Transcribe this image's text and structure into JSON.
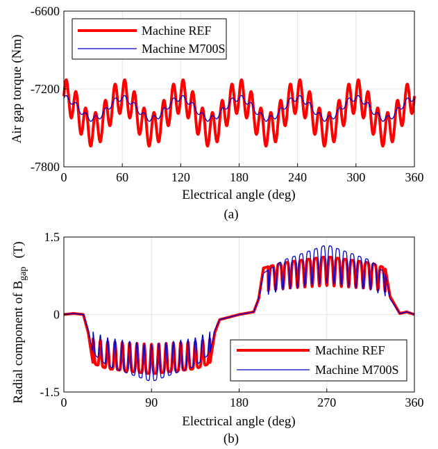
{
  "chart_data": [
    {
      "type": "line",
      "title": "",
      "panel_label": "(a)",
      "xlabel": "Electrical angle (deg)",
      "ylabel": "Air gap torque (Nm)",
      "xlim": [
        0,
        360
      ],
      "ylim": [
        -7800,
        -6600
      ],
      "xticks": [
        "0",
        "60",
        "120",
        "180",
        "240",
        "300",
        "360"
      ],
      "yticks": [
        "-7800",
        "-7200",
        "-6600"
      ],
      "grid": true,
      "legend_position": "top-left",
      "series": [
        {
          "name": "Machine REF",
          "color": "#ff0000",
          "mean": -7385,
          "components": [
            {
              "harmonic": 6,
              "amplitude": 130,
              "phase": 1.57
            },
            {
              "harmonic": 36,
              "amplitude": 130,
              "phase": 0.0
            }
          ]
        },
        {
          "name": "Machine M700S",
          "color": "#0000cc",
          "mean": -7350,
          "components": [
            {
              "harmonic": 6,
              "amplitude": 80,
              "phase": 1.57
            },
            {
              "harmonic": 36,
              "amplitude": 22,
              "phase": 0.0
            }
          ]
        }
      ]
    },
    {
      "type": "line",
      "title": "",
      "panel_label": "(b)",
      "xlabel": "Electrical angle (deg)",
      "ylabel": "Radial component of B",
      "ylabel_subscript": "gap",
      "ylabel_unit": "(T)",
      "xlim": [
        0,
        360
      ],
      "ylim": [
        -1.5,
        1.5
      ],
      "xticks": [
        "0",
        "90",
        "180",
        "270",
        "360"
      ],
      "yticks": [
        "-1.5",
        "0",
        "1.5"
      ],
      "grid": true,
      "legend_position": "bottom-right",
      "series": [
        {
          "name": "Machine REF",
          "color": "#ff0000",
          "envelope": [
            [
              0,
              0.0
            ],
            [
              10,
              0.02
            ],
            [
              20,
              0.0
            ],
            [
              25,
              -0.35
            ],
            [
              30,
              -0.95
            ],
            [
              45,
              -1.05
            ],
            [
              90,
              -1.15
            ],
            [
              135,
              -1.05
            ],
            [
              150,
              -0.95
            ],
            [
              155,
              -0.35
            ],
            [
              160,
              -0.1
            ],
            [
              170,
              -0.05
            ],
            [
              180,
              0.0
            ],
            [
              195,
              0.05
            ],
            [
              200,
              0.3
            ],
            [
              205,
              0.9
            ],
            [
              225,
              1.0
            ],
            [
              270,
              1.12
            ],
            [
              315,
              1.0
            ],
            [
              330,
              0.9
            ],
            [
              335,
              0.35
            ],
            [
              345,
              0.02
            ],
            [
              352,
              0.05
            ],
            [
              360,
              0.0
            ]
          ],
          "slot_ripple": {
            "count": 16,
            "depth": 0.5,
            "extent_deg": [
              30,
              150
            ]
          }
        },
        {
          "name": "Machine M700S",
          "color": "#0000cc",
          "envelope": [
            [
              0,
              0.0
            ],
            [
              10,
              0.02
            ],
            [
              20,
              0.0
            ],
            [
              25,
              -0.3
            ],
            [
              30,
              -0.75
            ],
            [
              45,
              -1.0
            ],
            [
              90,
              -1.3
            ],
            [
              135,
              -1.0
            ],
            [
              150,
              -0.75
            ],
            [
              155,
              -0.3
            ],
            [
              160,
              -0.1
            ],
            [
              170,
              -0.05
            ],
            [
              180,
              0.0
            ],
            [
              195,
              0.05
            ],
            [
              200,
              0.3
            ],
            [
              205,
              0.8
            ],
            [
              225,
              1.05
            ],
            [
              270,
              1.35
            ],
            [
              315,
              1.05
            ],
            [
              330,
              0.8
            ],
            [
              335,
              0.3
            ],
            [
              345,
              0.02
            ],
            [
              352,
              0.05
            ],
            [
              360,
              0.0
            ]
          ],
          "slot_ripple": {
            "count": 16,
            "depth": 0.55,
            "extent_deg": [
              30,
              150
            ]
          }
        }
      ]
    }
  ]
}
